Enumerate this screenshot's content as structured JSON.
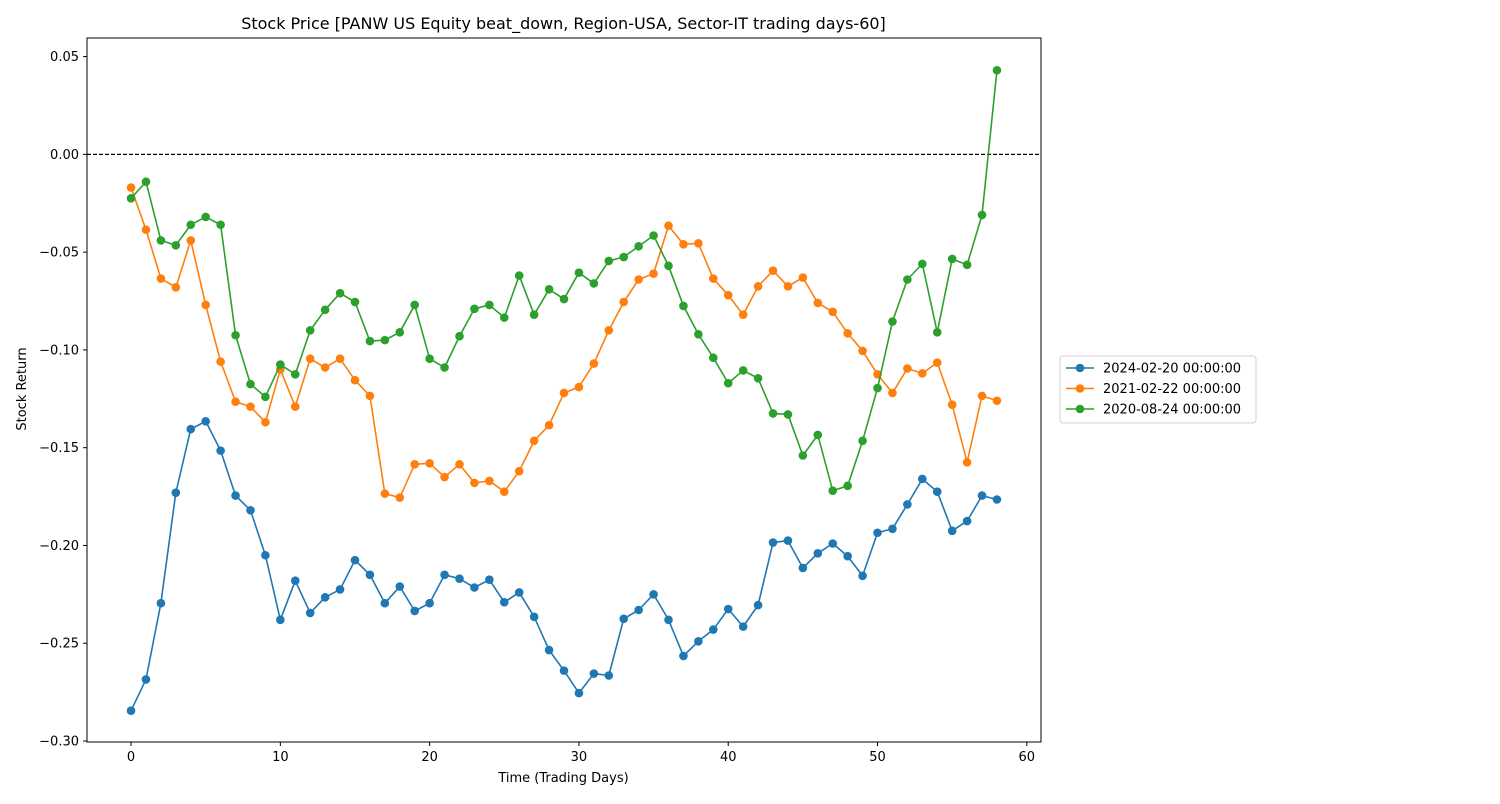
{
  "chart_data": {
    "type": "line",
    "title": "Stock Price [PANW US Equity beat_down, Region-USA, Sector-IT trading days-60]",
    "xlabel": "Time (Trading Days)",
    "ylabel": "Stock Return",
    "xlim": [
      -2.95,
      60.95
    ],
    "ylim": [
      -0.3005,
      0.0595
    ],
    "xticks": [
      0,
      10,
      20,
      30,
      40,
      50,
      60
    ],
    "yticks": [
      -0.3,
      -0.25,
      -0.2,
      -0.15,
      -0.1,
      -0.05,
      0.0,
      0.05
    ],
    "ytick_labels": [
      "−0.30",
      "−0.25",
      "−0.20",
      "−0.15",
      "−0.10",
      "−0.05",
      "0.00",
      "0.05"
    ],
    "reference_line": {
      "y": 0.0,
      "style": "dashed",
      "color": "#000000"
    },
    "grid": false,
    "legend_position": "right-center",
    "series": [
      {
        "name": "2024-02-20 00:00:00",
        "color": "#1f77b4",
        "values": [
          -0.2845,
          -0.2685,
          -0.2295,
          -0.173,
          -0.1405,
          -0.1365,
          -0.1515,
          -0.1745,
          -0.182,
          -0.205,
          -0.238,
          -0.218,
          -0.2345,
          -0.2265,
          -0.2225,
          -0.2075,
          -0.215,
          -0.2295,
          -0.221,
          -0.2335,
          -0.2295,
          -0.215,
          -0.217,
          -0.2215,
          -0.2175,
          -0.229,
          -0.224,
          -0.2365,
          -0.2535,
          -0.264,
          -0.2755,
          -0.2655,
          -0.2665,
          -0.2375,
          -0.233,
          -0.225,
          -0.238,
          -0.2565,
          -0.249,
          -0.243,
          -0.2325,
          -0.2415,
          -0.2305,
          -0.1985,
          -0.1975,
          -0.2115,
          -0.204,
          -0.199,
          -0.2055,
          -0.2155,
          -0.1935,
          -0.1915,
          -0.179,
          -0.166,
          -0.1725,
          -0.1925,
          -0.1875,
          -0.1745,
          -0.1765
        ]
      },
      {
        "name": "2021-02-22 00:00:00",
        "color": "#ff7f0e",
        "values": [
          -0.017,
          -0.0385,
          -0.0635,
          -0.068,
          -0.044,
          -0.077,
          -0.106,
          -0.1265,
          -0.129,
          -0.137,
          -0.11,
          -0.129,
          -0.1045,
          -0.109,
          -0.1045,
          -0.1155,
          -0.1235,
          -0.1735,
          -0.1755,
          -0.1585,
          -0.158,
          -0.165,
          -0.1585,
          -0.168,
          -0.167,
          -0.1725,
          -0.162,
          -0.1465,
          -0.1385,
          -0.122,
          -0.119,
          -0.107,
          -0.09,
          -0.0755,
          -0.064,
          -0.061,
          -0.0365,
          -0.046,
          -0.0455,
          -0.0635,
          -0.072,
          -0.082,
          -0.0675,
          -0.0595,
          -0.0675,
          -0.063,
          -0.076,
          -0.0805,
          -0.0915,
          -0.1005,
          -0.1125,
          -0.122,
          -0.1095,
          -0.112,
          -0.1065,
          -0.128,
          -0.1575,
          -0.1235,
          -0.126
        ]
      },
      {
        "name": "2020-08-24 00:00:00",
        "color": "#2ca02c",
        "values": [
          -0.0225,
          -0.014,
          -0.044,
          -0.0465,
          -0.036,
          -0.032,
          -0.036,
          -0.0925,
          -0.1175,
          -0.124,
          -0.1075,
          -0.1125,
          -0.09,
          -0.0795,
          -0.071,
          -0.0755,
          -0.0955,
          -0.095,
          -0.091,
          -0.077,
          -0.1045,
          -0.109,
          -0.093,
          -0.079,
          -0.077,
          -0.0835,
          -0.062,
          -0.082,
          -0.069,
          -0.074,
          -0.0605,
          -0.066,
          -0.0545,
          -0.0525,
          -0.047,
          -0.0415,
          -0.057,
          -0.0775,
          -0.092,
          -0.104,
          -0.117,
          -0.1105,
          -0.1145,
          -0.1325,
          -0.133,
          -0.154,
          -0.1435,
          -0.172,
          -0.1695,
          -0.1465,
          -0.1195,
          -0.0855,
          -0.064,
          -0.056,
          -0.091,
          -0.0535,
          -0.0565,
          -0.031,
          0.043
        ]
      }
    ]
  }
}
